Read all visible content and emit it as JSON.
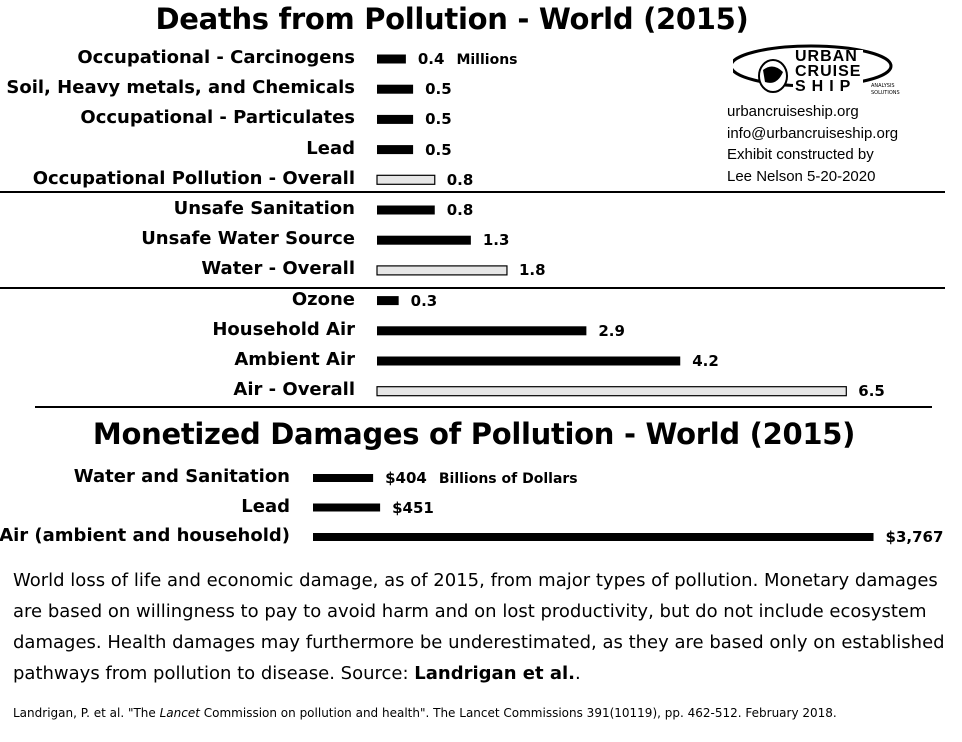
{
  "chart_data": [
    {
      "type": "bar",
      "orientation": "horizontal",
      "title": "Deaths from Pollution - World (2015)",
      "unit": "Millions",
      "categories": [
        "Occupational - Carcinogens",
        "Soil, Heavy metals, and Chemicals",
        "Occupational - Particulates",
        "Lead",
        "Occupational Pollution - Overall",
        "Unsafe Sanitation",
        "Unsafe Water Source",
        "Water - Overall",
        "Ozone",
        "Household Air",
        "Ambient Air",
        "Air - Overall"
      ],
      "values": [
        0.4,
        0.5,
        0.5,
        0.5,
        0.8,
        0.8,
        1.3,
        1.8,
        0.3,
        2.9,
        4.2,
        6.5
      ],
      "value_labels": [
        "0.4",
        "0.5",
        "0.5",
        "0.5",
        "0.8",
        "0.8",
        "1.3",
        "1.8",
        "0.3",
        "2.9",
        "4.2",
        "6.5"
      ],
      "overall_flags": [
        false,
        false,
        false,
        false,
        true,
        false,
        false,
        true,
        false,
        false,
        false,
        true
      ],
      "groups": [
        "Occupational",
        "Water",
        "Air"
      ],
      "colors": {
        "bar": "#000000",
        "overall_fill": "#e6e6e6",
        "overall_stroke": "#000000"
      }
    },
    {
      "type": "bar",
      "orientation": "horizontal",
      "title": "Monetized Damages of Pollution - World (2015)",
      "unit": "Billions of Dollars",
      "categories": [
        "Water and Sanitation",
        "Lead",
        "Air (ambient and household)"
      ],
      "values": [
        404,
        451,
        3767
      ],
      "value_labels": [
        "$404",
        "$451",
        "$3,767"
      ],
      "colors": {
        "bar": "#000000"
      }
    }
  ],
  "logo": {
    "line1": "URBAN",
    "line2": "CRUISE",
    "line3": "SHIP",
    "tag1": "ANALYSIS",
    "tag2": "SOLUTIONS"
  },
  "credits": [
    "urbancruiseship.org",
    "info@urbancruiseship.org",
    "Exhibit constructed by",
    "Lee Nelson 5-20-2020"
  ],
  "caption": {
    "text": "World loss of life and economic damage, as of 2015, from major types of pollution. Monetary damages are based on willingness to pay to avoid harm and on lost productivity, but do not include ecosystem damages. Health damages may furthermore be underestimated, as they are based only on established pathways from pollution to disease. Source: ",
    "source": "Landrigan et al.",
    "end": "."
  },
  "footnote": {
    "pre": "Landrigan, P. et al. \"The ",
    "italic": "Lancet",
    "post": " Commission on pollution and health\". The Lancet Commissions 391(10119), pp. 462-512. February 2018."
  }
}
